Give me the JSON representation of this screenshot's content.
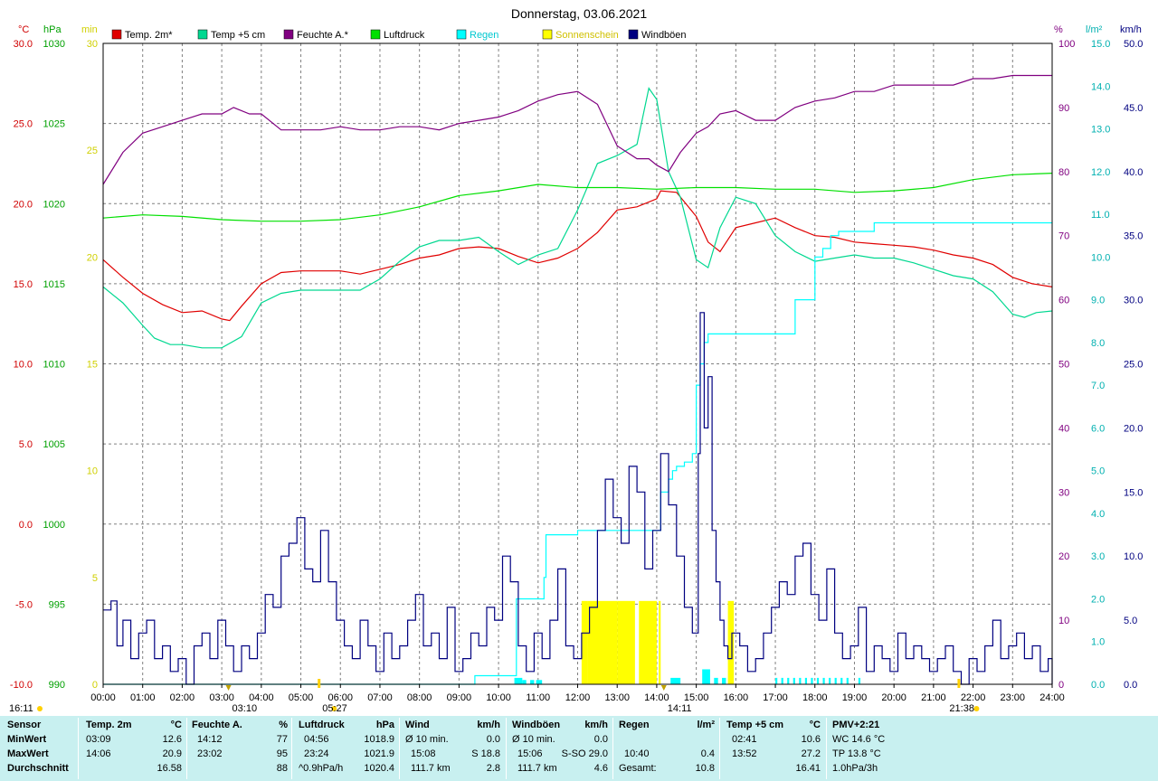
{
  "chart_data": {
    "type": "line",
    "title": "Donnerstag, 03.06.2021",
    "x_ticks": [
      "00:00",
      "01:00",
      "02:00",
      "03:00",
      "04:00",
      "05:00",
      "06:00",
      "07:00",
      "08:00",
      "09:00",
      "10:00",
      "11:00",
      "12:00",
      "13:00",
      "14:00",
      "15:00",
      "16:00",
      "17:00",
      "18:00",
      "19:00",
      "20:00",
      "21:00",
      "22:00",
      "23:00",
      "24:00"
    ],
    "grid": true,
    "legend_position": "top",
    "legend": [
      {
        "label": "Temp. 2m*",
        "color": "#e00000"
      },
      {
        "label": "Temp +5 cm",
        "color": "#00d890"
      },
      {
        "label": "Feuchte A.*",
        "color": "#800080"
      },
      {
        "label": "Luftdruck",
        "color": "#00e000"
      },
      {
        "label": "Regen",
        "color": "#00ffff"
      },
      {
        "label": "Sonnenschein",
        "color": "#ffff00"
      },
      {
        "label": "Windböen",
        "color": "#000080"
      }
    ],
    "axes": {
      "temp": {
        "unit": "°C",
        "range": [
          -10,
          30
        ],
        "ticks": [
          "30.0",
          "25.0",
          "20.0",
          "15.0",
          "10.0",
          "5.0",
          "0.0",
          "-5.0",
          "-10.0"
        ],
        "color": "#d00000"
      },
      "press": {
        "unit": "hPa",
        "range": [
          990,
          1030
        ],
        "ticks": [
          "1030",
          "1025",
          "1020",
          "1015",
          "1010",
          "1005",
          "1000",
          "995",
          "990"
        ],
        "color": "#00a000"
      },
      "sun": {
        "unit": "min",
        "range": [
          0,
          30
        ],
        "ticks": [
          "30",
          "25",
          "20",
          "15",
          "10",
          "5",
          "0"
        ],
        "color": "#d0d000"
      },
      "hum": {
        "unit": "%",
        "range": [
          0,
          100
        ],
        "ticks": [
          "100",
          "90",
          "80",
          "70",
          "60",
          "50",
          "40",
          "30",
          "20",
          "10",
          "0"
        ],
        "color": "#800080"
      },
      "rain": {
        "unit": "l/m²",
        "range": [
          0,
          15
        ],
        "ticks": [
          "15.0",
          "14.0",
          "13.0",
          "12.0",
          "11.0",
          "10.0",
          "9.0",
          "8.0",
          "7.0",
          "6.0",
          "5.0",
          "4.0",
          "3.0",
          "2.0",
          "1.0",
          "0.0"
        ],
        "color": "#00b0b0"
      },
      "wind": {
        "unit": "km/h",
        "range": [
          0,
          50
        ],
        "ticks": [
          "50.0",
          "45.0",
          "40.0",
          "35.0",
          "30.0",
          "25.0",
          "20.0",
          "15.0",
          "10.0",
          "5.0",
          "0.0"
        ],
        "color": "#000080"
      }
    },
    "series": [
      {
        "name": "Temp. 2m*",
        "axis": "temp",
        "color": "#e00000",
        "x": [
          0,
          0.5,
          1,
          1.5,
          2,
          2.5,
          3,
          3.2,
          3.5,
          4,
          4.5,
          5,
          5.5,
          6,
          6.5,
          7,
          7.5,
          8,
          8.5,
          9,
          9.5,
          10,
          10.5,
          11,
          11.5,
          12,
          12.5,
          13,
          13.5,
          14,
          14.1,
          14.5,
          15,
          15.3,
          15.6,
          16,
          16.5,
          17,
          17.5,
          18,
          18.5,
          19,
          19.5,
          20,
          20.5,
          21,
          21.5,
          22,
          22.5,
          23,
          23.5,
          24
        ],
        "y": [
          16.5,
          15.4,
          14.4,
          13.7,
          13.2,
          13.3,
          12.8,
          12.7,
          13.6,
          15,
          15.7,
          15.8,
          15.8,
          15.8,
          15.6,
          15.9,
          16.2,
          16.6,
          16.8,
          17.2,
          17.3,
          17.2,
          16.7,
          16.3,
          16.6,
          17.2,
          18.2,
          19.6,
          19.8,
          20.3,
          20.8,
          20.7,
          19.2,
          17.6,
          17.0,
          18.5,
          18.8,
          19.1,
          18.5,
          18.0,
          17.9,
          17.6,
          17.5,
          17.4,
          17.3,
          17.1,
          16.8,
          16.6,
          16.2,
          15.4,
          15.0,
          14.8
        ]
      },
      {
        "name": "Temp +5 cm",
        "axis": "temp",
        "color": "#00d890",
        "x": [
          0,
          0.5,
          1,
          1.3,
          1.7,
          2,
          2.5,
          3,
          3.5,
          4,
          4.5,
          5,
          5.5,
          6,
          6.5,
          7,
          7.5,
          8,
          8.5,
          9,
          9.5,
          10,
          10.5,
          11,
          11.5,
          12,
          12.5,
          13,
          13.5,
          13.8,
          14,
          14.3,
          14.6,
          15,
          15.3,
          15.6,
          16,
          16.5,
          17,
          17.5,
          18,
          18.5,
          19,
          19.5,
          20,
          20.5,
          21,
          21.5,
          22,
          22.5,
          23,
          23.3,
          23.6,
          24
        ],
        "y": [
          14.8,
          13.8,
          12.4,
          11.6,
          11.2,
          11.2,
          11.0,
          11.0,
          11.7,
          13.8,
          14.4,
          14.6,
          14.6,
          14.6,
          14.6,
          15.3,
          16.4,
          17.3,
          17.7,
          17.7,
          17.9,
          17.0,
          16.2,
          16.8,
          17.2,
          19.6,
          22.5,
          23.0,
          23.7,
          27.2,
          26.5,
          22.0,
          20.4,
          16.5,
          16.0,
          18.5,
          20.4,
          20.0,
          18.0,
          17.0,
          16.4,
          16.6,
          16.8,
          16.6,
          16.6,
          16.3,
          15.9,
          15.5,
          15.3,
          14.5,
          13.1,
          12.9,
          13.2,
          13.3
        ]
      },
      {
        "name": "Feuchte A.*",
        "axis": "hum",
        "color": "#800080",
        "x": [
          0,
          0.5,
          1,
          1.5,
          2,
          2.5,
          3,
          3.3,
          3.7,
          4,
          4.5,
          5,
          5.5,
          6,
          6.5,
          7,
          7.5,
          8,
          8.5,
          9,
          9.5,
          10,
          10.5,
          11,
          11.5,
          12,
          12.5,
          13,
          13.5,
          13.8,
          14,
          14.3,
          14.6,
          15,
          15.3,
          15.6,
          16,
          16.5,
          17,
          17.5,
          18,
          18.5,
          19,
          19.5,
          20,
          20.5,
          21,
          21.5,
          22,
          22.5,
          23,
          23.5,
          24
        ],
        "y": [
          78,
          83,
          86,
          87,
          88,
          89,
          89,
          90,
          89,
          89,
          86.5,
          86.5,
          86.5,
          87,
          86.5,
          86.5,
          87,
          87,
          86.5,
          87.5,
          88,
          88.5,
          89.5,
          91,
          92,
          92.5,
          90.5,
          84,
          82,
          82,
          81,
          80,
          83,
          86,
          87,
          89,
          89.5,
          88,
          88,
          90,
          91,
          91.5,
          92.5,
          92.5,
          93.5,
          93.5,
          93.5,
          93.5,
          94.5,
          94.5,
          95,
          95,
          95
        ]
      },
      {
        "name": "Luftdruck",
        "axis": "press",
        "color": "#00e000",
        "x": [
          0,
          1,
          2,
          3,
          4,
          5,
          6,
          7,
          8,
          9,
          10,
          11,
          12,
          13,
          14,
          15,
          16,
          17,
          18,
          19,
          20,
          21,
          22,
          23,
          24
        ],
        "y": [
          1019.1,
          1019.3,
          1019.2,
          1019.0,
          1018.9,
          1018.9,
          1019.0,
          1019.3,
          1019.8,
          1020.5,
          1020.8,
          1021.2,
          1021.0,
          1021.0,
          1020.9,
          1021.0,
          1021.0,
          1020.9,
          1020.9,
          1020.7,
          1020.8,
          1021.0,
          1021.5,
          1021.8,
          1021.9
        ]
      },
      {
        "name": "Regen",
        "axis": "rain",
        "color": "#00ffff",
        "x": [
          0,
          9.4,
          10.4,
          10.45,
          11.1,
          11.15,
          11.2,
          12,
          13,
          14.0,
          14.1,
          14.3,
          14.4,
          14.5,
          14.6,
          14.7,
          14.9,
          15.0,
          15.1,
          15.2,
          15.3,
          15.5,
          16,
          16.5,
          17,
          17.5,
          18,
          18.2,
          18.4,
          18.6,
          19,
          19.5,
          19.6,
          20,
          21,
          22,
          23,
          24
        ],
        "y": [
          0,
          0.2,
          0.2,
          2.0,
          2.0,
          2.5,
          3.5,
          3.6,
          3.6,
          3.6,
          4.5,
          4.8,
          5.0,
          5.1,
          5.1,
          5.2,
          5.4,
          7.0,
          7.5,
          8.0,
          8.2,
          8.2,
          8.2,
          8.2,
          8.2,
          9.0,
          10.0,
          10.2,
          10.5,
          10.6,
          10.6,
          10.8,
          10.8,
          10.8,
          10.8,
          10.8,
          10.8,
          10.8
        ]
      }
    ],
    "sunshine_bars": [
      {
        "from": 12.1,
        "to": 12.25,
        "value": 3.9
      },
      {
        "from": 12.25,
        "to": 13.0,
        "value": 3.9
      },
      {
        "from": 13.0,
        "to": 13.45,
        "value": 3.9
      },
      {
        "from": 13.55,
        "to": 14.0,
        "value": 3.9
      },
      {
        "from": 14.05,
        "to": 14.1,
        "value": 3.9
      },
      {
        "from": 15.8,
        "to": 15.95,
        "value": 3.9
      }
    ],
    "rain_bars": [
      {
        "from": 10.4,
        "to": 10.6,
        "value": 0.15
      },
      {
        "from": 10.6,
        "to": 10.7,
        "value": 0.1
      },
      {
        "from": 10.8,
        "to": 10.9,
        "value": 0.1
      },
      {
        "from": 10.95,
        "to": 11.1,
        "value": 0.1
      },
      {
        "from": 14.35,
        "to": 14.6,
        "value": 0.15
      },
      {
        "from": 15.15,
        "to": 15.35,
        "value": 0.35
      },
      {
        "from": 15.45,
        "to": 15.55,
        "value": 0.15
      },
      {
        "from": 15.65,
        "to": 15.75,
        "value": 0.15
      },
      {
        "from": 17.0,
        "to": 17.05,
        "value": 0.15
      },
      {
        "from": 17.15,
        "to": 17.2,
        "value": 0.15
      },
      {
        "from": 17.3,
        "to": 17.35,
        "value": 0.15
      },
      {
        "from": 17.45,
        "to": 17.5,
        "value": 0.15
      },
      {
        "from": 17.6,
        "to": 17.65,
        "value": 0.15
      },
      {
        "from": 17.75,
        "to": 17.8,
        "value": 0.15
      },
      {
        "from": 17.9,
        "to": 17.95,
        "value": 0.15
      },
      {
        "from": 18.05,
        "to": 18.1,
        "value": 0.15
      },
      {
        "from": 18.2,
        "to": 18.25,
        "value": 0.15
      },
      {
        "from": 18.35,
        "to": 18.4,
        "value": 0.15
      },
      {
        "from": 18.5,
        "to": 18.55,
        "value": 0.15
      },
      {
        "from": 18.65,
        "to": 18.7,
        "value": 0.15
      },
      {
        "from": 18.8,
        "to": 18.85,
        "value": 0.15
      },
      {
        "from": 19.1,
        "to": 19.15,
        "value": 0.15
      }
    ],
    "wind_gusts": {
      "name": "Windböen",
      "axis": "wind",
      "color": "#000080",
      "x": [
        0,
        0.2,
        0.35,
        0.5,
        0.7,
        0.9,
        1.1,
        1.3,
        1.5,
        1.7,
        1.9,
        2.1,
        2.3,
        2.5,
        2.7,
        2.9,
        3.1,
        3.3,
        3.5,
        3.7,
        3.9,
        4.1,
        4.3,
        4.5,
        4.7,
        4.9,
        5.1,
        5.3,
        5.5,
        5.7,
        5.9,
        6.1,
        6.3,
        6.5,
        6.7,
        6.9,
        7.1,
        7.3,
        7.5,
        7.7,
        7.9,
        8.1,
        8.3,
        8.5,
        8.7,
        8.9,
        9.1,
        9.3,
        9.5,
        9.7,
        9.9,
        10.1,
        10.3,
        10.5,
        10.7,
        10.9,
        11.1,
        11.3,
        11.5,
        11.7,
        11.9,
        12.1,
        12.3,
        12.5,
        12.7,
        12.9,
        13.1,
        13.3,
        13.5,
        13.7,
        13.9,
        14.1,
        14.3,
        14.5,
        14.7,
        14.9,
        15.05,
        15.1,
        15.2,
        15.3,
        15.4,
        15.5,
        15.6,
        15.7,
        15.8,
        15.9,
        16.1,
        16.3,
        16.5,
        16.7,
        16.9,
        17.1,
        17.3,
        17.5,
        17.7,
        17.9,
        18.1,
        18.3,
        18.5,
        18.7,
        18.9,
        19.1,
        19.3,
        19.5,
        19.7,
        19.9,
        20.1,
        20.3,
        20.5,
        20.7,
        20.9,
        21.1,
        21.3,
        21.5,
        21.7,
        21.9,
        22.1,
        22.3,
        22.5,
        22.7,
        22.9,
        23.1,
        23.3,
        23.5,
        23.7,
        23.9,
        24
      ],
      "y": [
        5.8,
        6.5,
        3,
        5,
        2,
        4,
        5,
        2,
        3,
        1,
        2,
        0,
        3,
        4,
        2,
        5,
        3,
        1,
        3,
        2,
        4,
        7,
        6,
        10,
        11,
        13,
        9,
        8,
        12,
        8,
        5,
        3,
        2,
        5,
        3,
        1,
        4,
        2,
        3,
        5,
        7,
        3,
        4,
        2,
        6,
        1,
        2,
        4,
        3,
        6,
        5,
        10,
        8,
        3,
        1,
        4,
        2,
        5,
        9,
        3,
        2,
        4,
        6,
        12,
        16,
        13,
        11,
        17,
        15,
        9,
        12,
        18,
        14,
        10,
        6,
        4,
        18,
        29,
        20,
        24,
        12,
        8,
        5,
        3,
        2,
        4,
        3,
        1,
        2,
        4,
        6,
        8,
        7,
        10,
        11,
        7,
        5,
        9,
        4,
        2,
        3,
        6,
        1,
        3,
        2,
        1,
        4,
        2,
        3,
        2,
        1,
        2,
        3,
        1,
        0,
        2,
        1,
        3,
        5,
        2,
        3,
        4,
        2,
        3,
        1,
        2,
        0
      ]
    }
  },
  "markers": [
    {
      "x": 3.17,
      "label": "03:10",
      "type": "min-temp"
    },
    {
      "x": 5.45,
      "label": "05:27",
      "type": "sunrise"
    },
    {
      "x": 14.18,
      "label": "14:11",
      "type": "max-temp"
    },
    {
      "x": 21.63,
      "label": "21:38",
      "type": "sunset"
    }
  ],
  "corner_time": "16:11",
  "stats": {
    "sensor": {
      "header": "Sensor",
      "rows": [
        "MinWert",
        "MaxWert",
        "Durchschnitt"
      ]
    },
    "temp2m": {
      "header": "Temp. 2m",
      "unit": "°C",
      "rows": [
        [
          "03:09",
          "12.6"
        ],
        [
          "14:06",
          "20.9"
        ],
        [
          "",
          "16.58"
        ]
      ]
    },
    "feuchte": {
      "header": "Feuchte A.",
      "unit": "%",
      "rows": [
        [
          "14:12",
          "77"
        ],
        [
          "23:02",
          "95"
        ],
        [
          "",
          "88"
        ]
      ]
    },
    "luftdruck": {
      "header": "Luftdruck",
      "unit": "hPa",
      "rows": [
        [
          "04:56",
          "1018.9"
        ],
        [
          "23:24",
          "1021.9"
        ],
        [
          "^0.9hPa/h",
          "1020.4"
        ]
      ]
    },
    "wind": {
      "header": "Wind",
      "unit": "km/h",
      "rows": [
        [
          "Ø 10 min.",
          "0.0"
        ],
        [
          "15:08",
          "S 18.8"
        ],
        [
          "111.7 km",
          "2.8"
        ]
      ]
    },
    "windboeen": {
      "header": "Windböen",
      "unit": "km/h",
      "rows": [
        [
          "Ø 10 min.",
          "0.0"
        ],
        [
          "15:06",
          "S-SO 29.0"
        ],
        [
          "111.7 km",
          "4.6"
        ]
      ]
    },
    "regen": {
      "header": "Regen",
      "unit": "l/m²",
      "rows": [
        [
          "",
          ""
        ],
        [
          "10:40",
          "0.4"
        ],
        [
          "Gesamt:",
          "10.8"
        ]
      ]
    },
    "temp5": {
      "header": "Temp +5 cm",
      "unit": "°C",
      "rows": [
        [
          "02:41",
          "10.6"
        ],
        [
          "13:52",
          "27.2"
        ],
        [
          "",
          "16.41"
        ]
      ]
    },
    "pmv": {
      "header": "PMV+2:21",
      "rows": [
        "WC 14.6 °C",
        "TP 13.8 °C",
        "1.0hPa/3h"
      ]
    }
  }
}
